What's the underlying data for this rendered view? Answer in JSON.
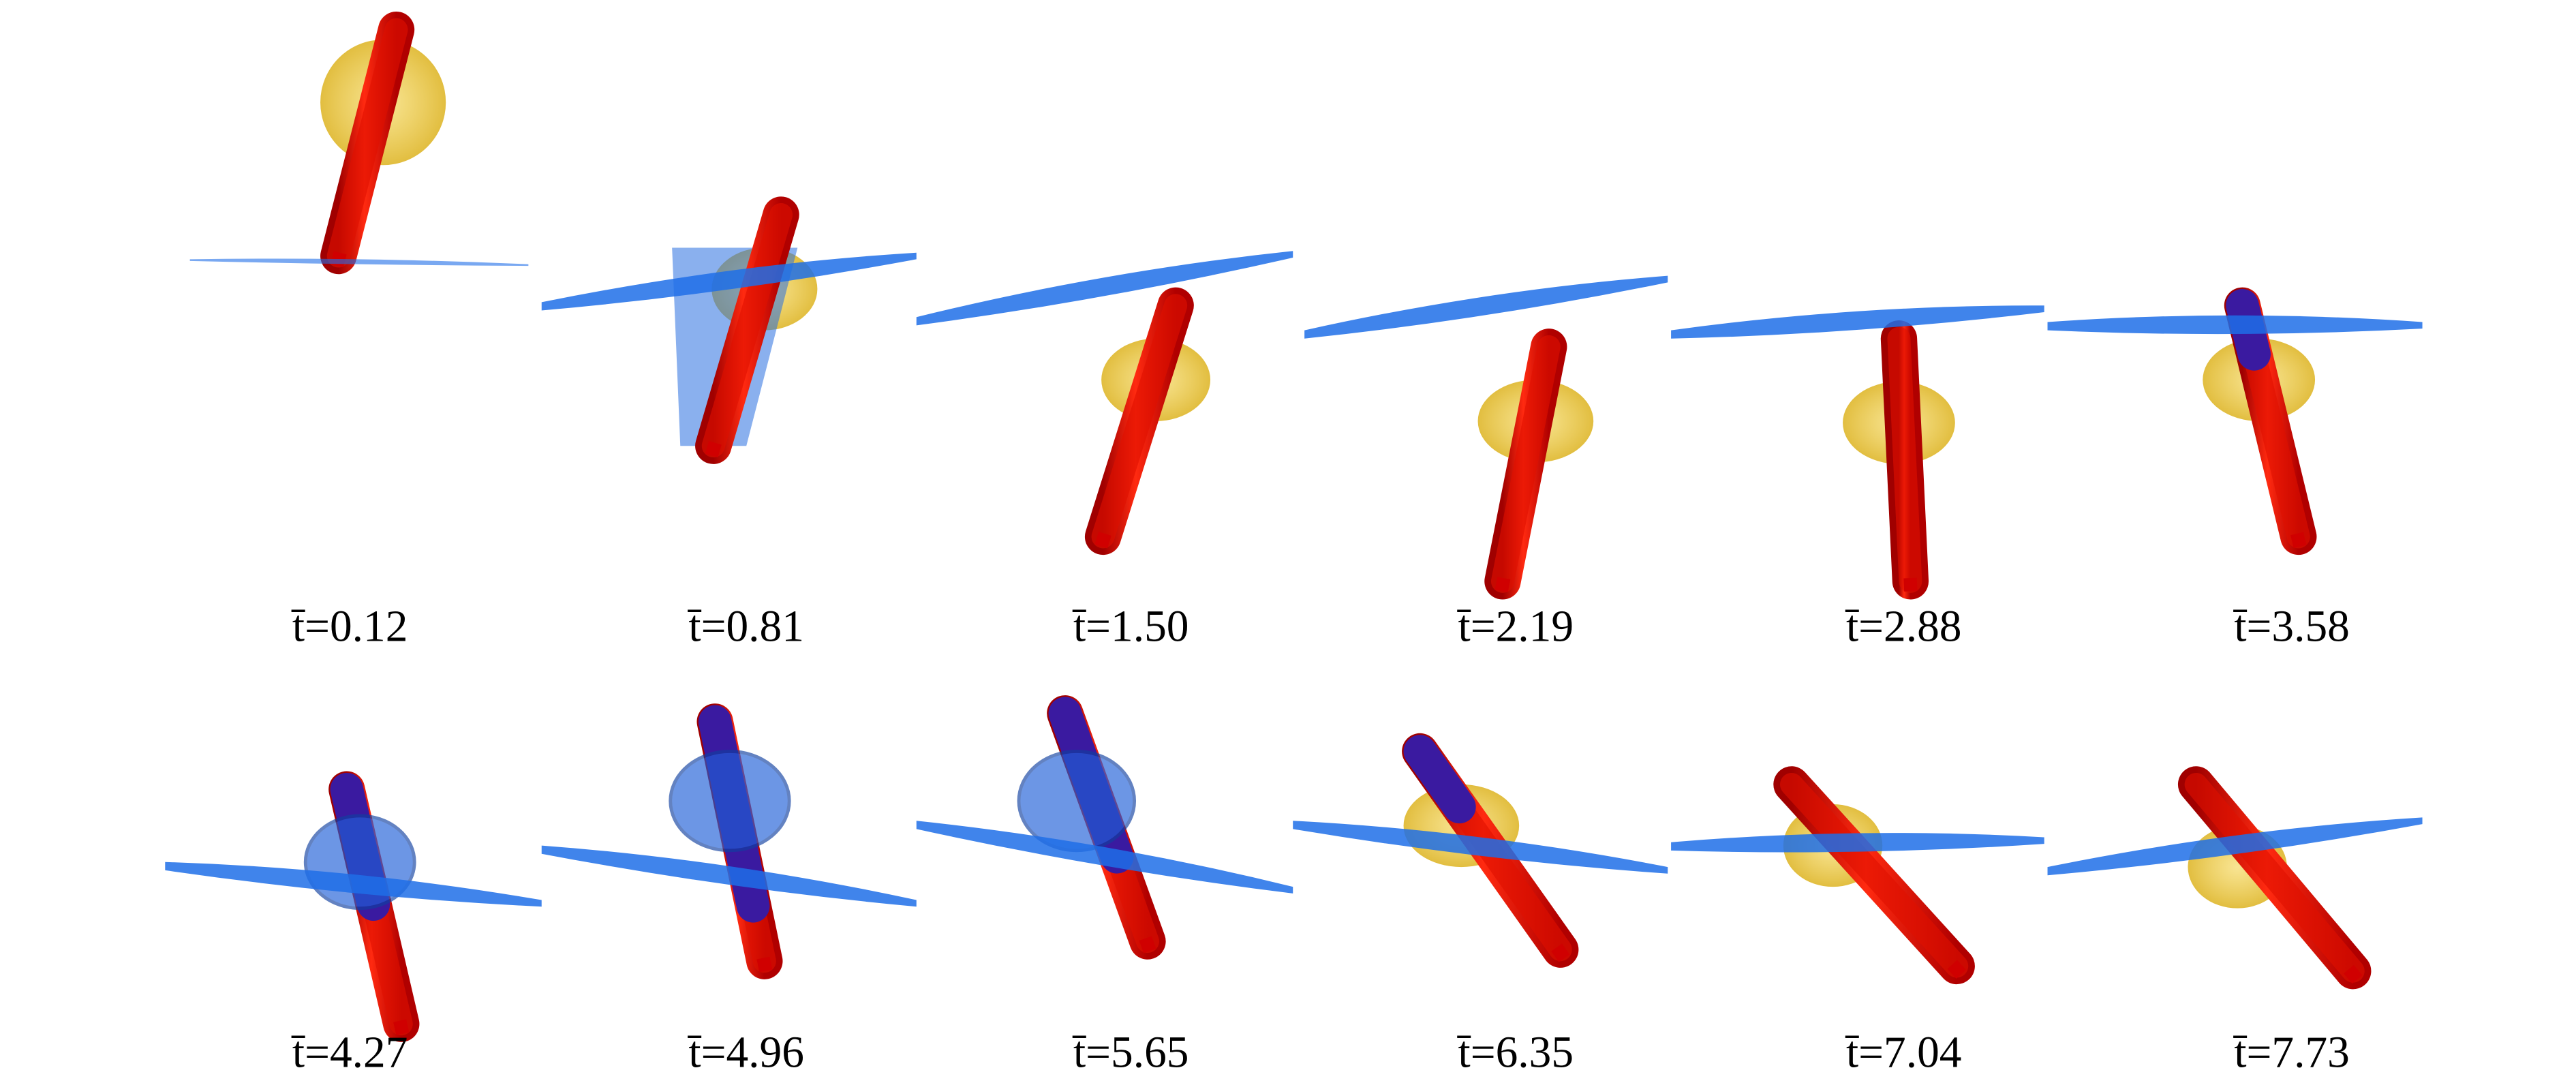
{
  "panels": [
    {
      "label": "t̄=0.12"
    },
    {
      "label": "t̄=0.81"
    },
    {
      "label": "t̄=1.50"
    },
    {
      "label": "t̄=2.19"
    },
    {
      "label": "t̄=2.88"
    },
    {
      "label": "t̄=3.58"
    },
    {
      "label": "t̄=4.27"
    },
    {
      "label": "t̄=4.96"
    },
    {
      "label": "t̄=5.65"
    },
    {
      "label": "t̄=6.35"
    },
    {
      "label": "t̄=7.04"
    },
    {
      "label": "t̄=7.73"
    }
  ]
}
